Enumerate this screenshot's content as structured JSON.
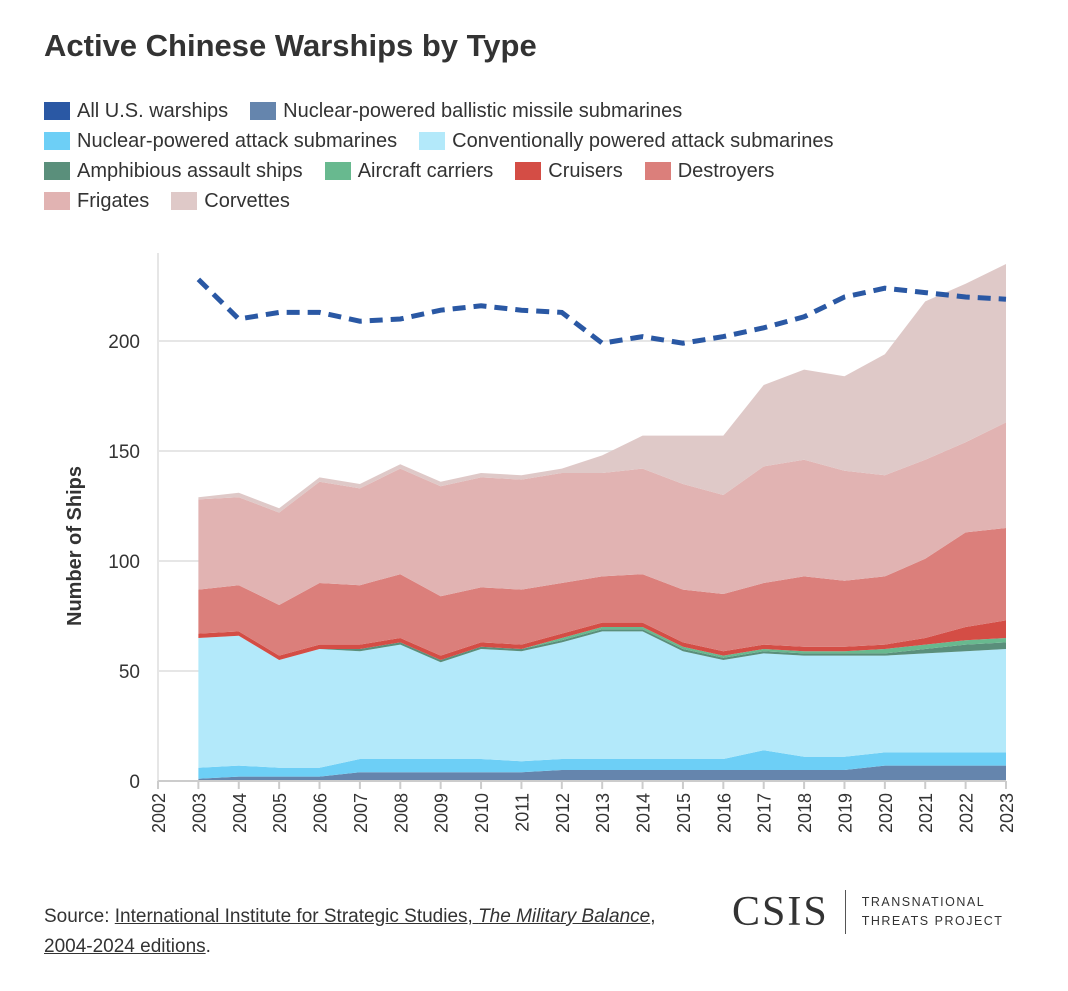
{
  "title": "Active Chinese Warships by Type",
  "footer": {
    "source_prefix": "Source: ",
    "source_link1": "International Institute for Strategic Studies, ",
    "source_italic": "The Military Balance",
    "source_link2": ", 2004-2024 editions",
    "source_suffix": "."
  },
  "logo": {
    "main": "CSIS",
    "sub_line1": "TRANSNATIONAL",
    "sub_line2": "THREATS PROJECT"
  },
  "chart_data": {
    "type": "area",
    "stacked": true,
    "title": "Active Chinese Warships by Type",
    "ylabel": "Number of Ships",
    "xlabel": "",
    "ylim": [
      0,
      250
    ],
    "yticks": [
      0,
      50,
      100,
      150,
      200
    ],
    "xticks": [
      2002,
      2003,
      2004,
      2005,
      2006,
      2007,
      2008,
      2009,
      2010,
      2011,
      2012,
      2013,
      2014,
      2015,
      2016,
      2017,
      2018,
      2019,
      2020,
      2021,
      2022,
      2023
    ],
    "grid": "horizontal",
    "legend_position": "top",
    "x": [
      2003,
      2004,
      2005,
      2006,
      2007,
      2008,
      2009,
      2010,
      2011,
      2012,
      2013,
      2014,
      2015,
      2016,
      2017,
      2018,
      2019,
      2020,
      2021,
      2022,
      2023
    ],
    "line_series": {
      "name": "All U.S. warships",
      "color": "#2a58a4",
      "style": "dashed",
      "values": [
        228,
        210,
        213,
        213,
        209,
        210,
        214,
        216,
        214,
        213,
        199,
        202,
        199,
        202,
        206,
        211,
        220,
        224,
        222,
        220,
        219
      ]
    },
    "series": [
      {
        "name": "Nuclear-powered ballistic missile submarines",
        "color": "#6585ad",
        "values": [
          1,
          2,
          2,
          2,
          4,
          4,
          4,
          4,
          4,
          5,
          5,
          5,
          5,
          5,
          5,
          5,
          5,
          7,
          7,
          7,
          7
        ]
      },
      {
        "name": "Nuclear-powered attack submarines",
        "color": "#6dcff6",
        "values": [
          5,
          5,
          4,
          4,
          6,
          6,
          6,
          6,
          5,
          5,
          5,
          5,
          5,
          5,
          9,
          6,
          6,
          6,
          6,
          6,
          6
        ]
      },
      {
        "name": "Conventionally powered attack submarines",
        "color": "#b3e9fa",
        "values": [
          59,
          59,
          49,
          54,
          49,
          52,
          44,
          50,
          50,
          53,
          58,
          58,
          49,
          45,
          44,
          46,
          46,
          44,
          45,
          46,
          47
        ]
      },
      {
        "name": "Amphibious assault ships",
        "color": "#5a8f7b",
        "values": [
          0,
          0,
          0,
          0,
          1,
          1,
          1,
          1,
          1,
          1,
          1,
          1,
          1,
          1,
          1,
          1,
          1,
          1,
          2,
          3,
          3
        ]
      },
      {
        "name": "Aircraft carriers",
        "color": "#68b98f",
        "values": [
          0,
          0,
          0,
          0,
          0,
          0,
          0,
          0,
          0,
          1,
          1,
          1,
          1,
          1,
          1,
          1,
          1,
          2,
          2,
          2,
          2
        ]
      },
      {
        "name": "Cruisers",
        "color": "#d44d45",
        "values": [
          2,
          2,
          2,
          2,
          2,
          2,
          2,
          2,
          2,
          2,
          2,
          2,
          2,
          2,
          2,
          2,
          2,
          2,
          3,
          6,
          8
        ]
      },
      {
        "name": "Destroyers",
        "color": "#db7f7b",
        "values": [
          20,
          21,
          23,
          28,
          27,
          29,
          27,
          25,
          25,
          23,
          21,
          22,
          24,
          26,
          28,
          32,
          30,
          31,
          36,
          43,
          42
        ]
      },
      {
        "name": "Frigates",
        "color": "#e1b3b2",
        "values": [
          41,
          40,
          42,
          46,
          44,
          48,
          50,
          50,
          50,
          50,
          47,
          48,
          48,
          45,
          53,
          53,
          50,
          46,
          45,
          41,
          48
        ]
      },
      {
        "name": "Corvettes",
        "color": "#dfc9c8",
        "values": [
          1,
          2,
          2,
          2,
          2,
          2,
          2,
          2,
          2,
          2,
          8,
          15,
          22,
          27,
          37,
          41,
          43,
          55,
          72,
          72,
          72
        ]
      }
    ]
  }
}
